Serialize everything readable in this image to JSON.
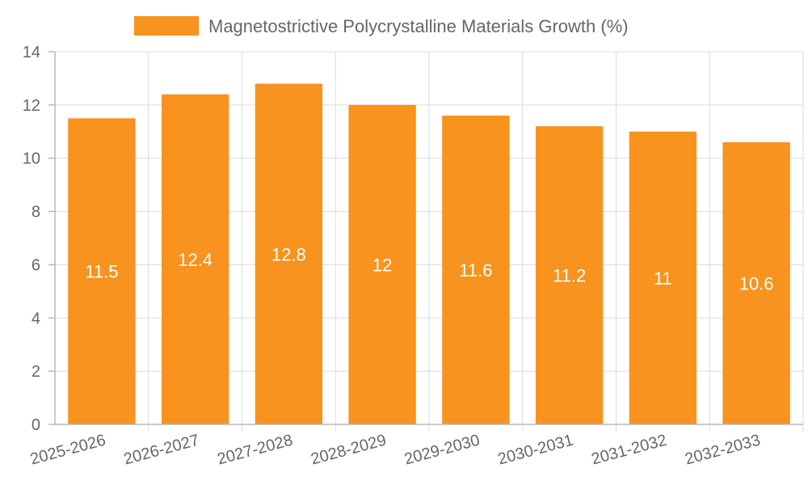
{
  "chart_data": {
    "type": "bar",
    "categories": [
      "2025-2026",
      "2026-2027",
      "2027-2028",
      "2028-2029",
      "2029-2030",
      "2030-2031",
      "2031-2032",
      "2032-2033"
    ],
    "series": [
      {
        "name": "Magnetostrictive Polycrystalline Materials Growth (%)",
        "values": [
          11.5,
          12.4,
          12.8,
          12,
          11.6,
          11.2,
          11,
          10.6
        ],
        "color": "#f7931e"
      }
    ],
    "data_labels": [
      "11.5",
      "12.4",
      "12.8",
      "12",
      "11.6",
      "11.2",
      "11",
      "10.6"
    ],
    "y_ticks": [
      "0",
      "2",
      "4",
      "6",
      "8",
      "10",
      "12",
      "14"
    ],
    "ylim": [
      0,
      14
    ],
    "grid": true,
    "legend": {
      "position": "top-center"
    },
    "colors": {
      "axis": "#b8b8b8",
      "grid": "#dcdcdc",
      "text": "#666666",
      "label": "#ffffff"
    }
  }
}
